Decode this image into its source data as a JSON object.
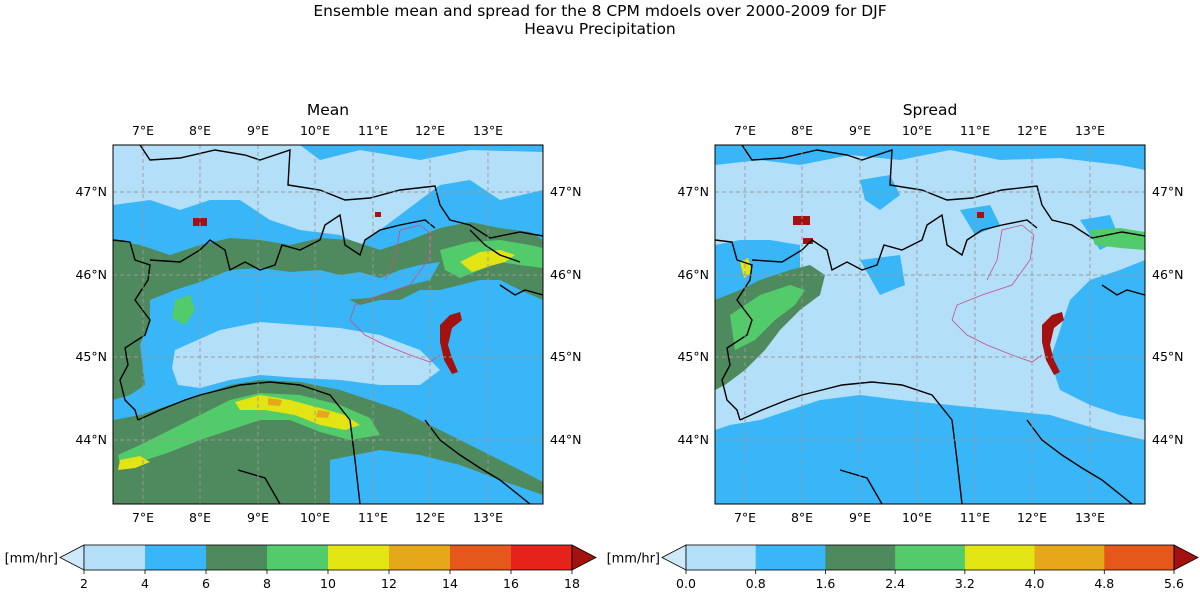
{
  "figure": {
    "title_line1": "Ensemble mean and spread for the 8 CPM mdoels over 2000-2009 for DJF",
    "title_line2": "Heavu Precipitation"
  },
  "chart_data": [
    {
      "type": "heatmap",
      "title": "Mean",
      "lon_ticks": [
        "7°E",
        "8°E",
        "9°E",
        "10°E",
        "11°E",
        "12°E",
        "13°E"
      ],
      "lat_ticks": [
        "47°N",
        "46°N",
        "45°N",
        "44°N"
      ],
      "lon_range": [
        6.5,
        13.9
      ],
      "lat_range": [
        43.2,
        47.55
      ],
      "grid": true,
      "colorbar": {
        "label": "[mm/hr]",
        "ticks": [
          "2",
          "4",
          "6",
          "8",
          "10",
          "12",
          "14",
          "16",
          "18"
        ],
        "colors": [
          "#b3dff8",
          "#38b6f7",
          "#4f8a5e",
          "#52cb6a",
          "#e2e414",
          "#e4a81a",
          "#e6571b",
          "#e6231b"
        ],
        "under_color": "#cde9fa",
        "over_color": "#a3120e",
        "extend": "both"
      }
    },
    {
      "type": "heatmap",
      "title": "Spread",
      "lon_ticks": [
        "7°E",
        "8°E",
        "9°E",
        "10°E",
        "11°E",
        "12°E",
        "13°E"
      ],
      "lat_ticks": [
        "47°N",
        "46°N",
        "45°N",
        "44°N"
      ],
      "lon_range": [
        6.5,
        13.9
      ],
      "lat_range": [
        43.2,
        47.55
      ],
      "grid": true,
      "colorbar": {
        "label": "[mm/hr]",
        "ticks": [
          "0.0",
          "0.8",
          "1.6",
          "2.4",
          "3.2",
          "4.0",
          "4.8",
          "5.6"
        ],
        "colors": [
          "#b3dff8",
          "#38b6f7",
          "#4f8a5e",
          "#52cb6a",
          "#e2e414",
          "#e4a81a",
          "#e6571b"
        ],
        "under_color": "#cde9fa",
        "over_color": "#a3120e",
        "extend": "both"
      }
    }
  ]
}
